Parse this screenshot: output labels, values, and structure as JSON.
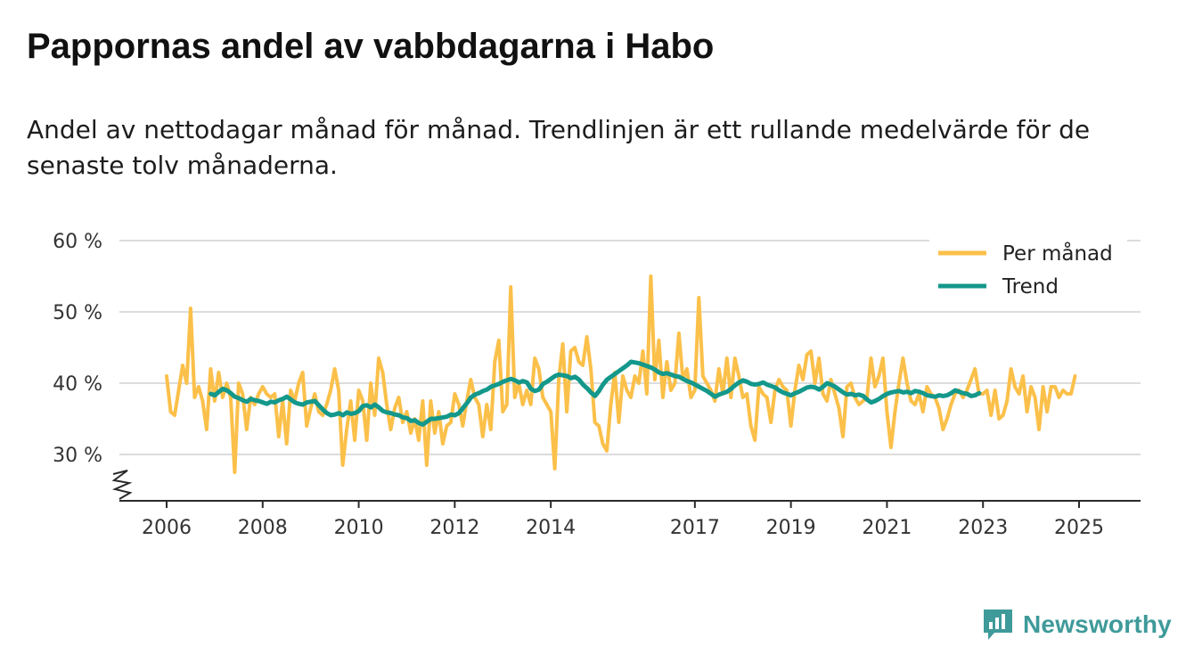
{
  "title": "Pappornas andel av vabbdagarna i Habo",
  "subtitle": "Andel av nettodagar månad för månad. Trendlinjen är ett rullande medelvärde för de senaste tolv månaderna.",
  "brand": {
    "name": "Newsworthy",
    "color": "#3f9a9a"
  },
  "chart_data": {
    "type": "line",
    "title": "Pappornas andel av vabbdagarna i Habo",
    "xlabel": "",
    "ylabel": "",
    "ylim": [
      24,
      60
    ],
    "y_ticks": [
      30,
      40,
      50,
      60
    ],
    "y_tick_labels": [
      "30 %",
      "40 %",
      "50 %",
      "60 %"
    ],
    "x_range": [
      2005.5,
      2025.7
    ],
    "x_ticks": [
      2006,
      2008,
      2010,
      2012,
      2014,
      2017,
      2019,
      2021,
      2023,
      2025
    ],
    "x_tick_labels": [
      "2006",
      "2008",
      "2010",
      "2012",
      "2014",
      "2017",
      "2019",
      "2021",
      "2023",
      "2025"
    ],
    "grid": true,
    "legend_position": "top-right",
    "series": [
      {
        "name": "Per månad",
        "color": "#fbc04a",
        "start": 2006.0,
        "step_months": 1,
        "values": [
          41,
          36,
          35.5,
          39,
          42.5,
          40,
          50.5,
          38,
          39.5,
          37.5,
          33.5,
          42,
          37.5,
          41.5,
          38,
          40,
          38,
          27.5,
          40,
          38.5,
          33.5,
          38,
          37,
          38.5,
          39.5,
          38.5,
          38,
          38.5,
          32.5,
          37.5,
          31.5,
          39,
          37.5,
          40,
          41.5,
          34,
          36.5,
          38.5,
          36,
          35.5,
          37,
          39,
          42,
          39,
          28.5,
          33.5,
          37.5,
          32,
          39,
          37.5,
          32,
          40,
          35.5,
          43.5,
          41.5,
          37,
          33.5,
          36.5,
          38,
          34.5,
          36,
          33,
          35,
          32,
          37.5,
          28.5,
          37.5,
          33,
          36,
          31.5,
          34,
          34.5,
          38.5,
          37,
          34,
          37.5,
          40.5,
          38,
          37,
          32.5,
          37,
          33.5,
          43,
          46,
          36,
          37,
          53.5,
          38,
          40,
          37,
          39,
          37,
          43.5,
          42,
          38,
          37,
          36,
          28,
          40.5,
          45.5,
          36,
          44.5,
          45,
          43,
          42.5,
          46.5,
          42,
          34.5,
          34,
          31.5,
          30.5,
          37,
          41.5,
          34.5,
          41,
          39,
          38,
          41,
          40,
          44.5,
          38.5,
          55,
          40.5,
          46,
          38,
          43,
          39,
          40,
          47,
          40.5,
          42,
          38,
          39,
          52,
          41,
          40,
          39,
          37.5,
          42,
          38.5,
          43.5,
          38,
          43.5,
          41,
          38,
          38.5,
          34,
          32,
          39.5,
          38.5,
          38,
          34.5,
          39,
          40.5,
          39.5,
          39,
          34,
          39,
          42.5,
          40.5,
          44,
          44.5,
          40,
          43.5,
          38.5,
          37.5,
          40.5,
          38.5,
          36.5,
          32.5,
          39.5,
          40,
          38,
          37,
          37.5,
          38,
          43.5,
          39.5,
          41,
          43.5,
          36,
          31,
          36,
          40,
          43.5,
          40,
          37.5,
          37,
          38.5,
          36,
          39.5,
          38.5,
          38,
          36.5,
          33.5,
          35,
          37,
          38.5,
          39,
          38,
          39,
          40.5,
          42,
          38.5,
          38.5,
          39,
          35.5,
          39,
          35,
          35.5,
          37.5,
          42,
          39.5,
          38.5,
          41,
          36,
          39.5,
          38,
          33.5,
          39.5,
          36,
          39.5,
          39.5,
          38,
          39,
          38.5,
          38.5,
          41
        ]
      },
      {
        "name": "Trend",
        "color": "#13988b",
        "start": 2006.92,
        "step_months": 1,
        "values": [
          38.5,
          38.3,
          38.8,
          39.2,
          39,
          38.6,
          38.1,
          37.9,
          37.6,
          37.4,
          37.8,
          37.6,
          37.5,
          37.3,
          37.1,
          37.4,
          37.3,
          37.6,
          37.8,
          38.1,
          37.7,
          37.3,
          37.1,
          37,
          37.3,
          37.4,
          37.5,
          36.9,
          36.3,
          35.8,
          35.5,
          35.6,
          35.8,
          35.5,
          35.9,
          35.7,
          35.8,
          36.1,
          36.8,
          36.9,
          36.6,
          37,
          36.6,
          36.1,
          35.9,
          35.8,
          35.6,
          35.5,
          35.2,
          35.1,
          34.7,
          34.8,
          34.4,
          34.2,
          34.6,
          35,
          35,
          35.1,
          35.2,
          35.3,
          35.6,
          35.5,
          35.8,
          36.5,
          37.2,
          38,
          38.4,
          38.6,
          38.9,
          39.1,
          39.5,
          39.7,
          39.9,
          40.2,
          40.4,
          40.6,
          40.4,
          40.1,
          40.3,
          40.1,
          39.2,
          38.9,
          39.1,
          39.9,
          40.2,
          40.6,
          41,
          41.2,
          41.1,
          41,
          40.7,
          40.9,
          40.5,
          39.8,
          39.3,
          38.7,
          38.2,
          38.9,
          39.8,
          40.5,
          40.9,
          41.3,
          41.7,
          42.1,
          42.5,
          43,
          42.9,
          42.8,
          42.6,
          42.4,
          42.2,
          41.9,
          41.5,
          41.3,
          41.4,
          41.2,
          41,
          40.9,
          40.6,
          40.3,
          40.1,
          39.8,
          39.5,
          39.2,
          38.9,
          38.5,
          38.1,
          38.4,
          38.6,
          38.8,
          39.2,
          39.7,
          40.1,
          40.4,
          40.2,
          39.9,
          39.8,
          39.9,
          40.1,
          39.8,
          39.6,
          39.4,
          39,
          38.7,
          38.5,
          38.3,
          38.6,
          38.8,
          39.1,
          39.4,
          39.5,
          39.4,
          39.1,
          39.5,
          40,
          39.8,
          39.5,
          39.1,
          38.7,
          38.4,
          38.5,
          38.3,
          38.4,
          38.2,
          37.7,
          37.3,
          37.5,
          37.8,
          38.2,
          38.5,
          38.7,
          38.8,
          38.9,
          38.7,
          38.8,
          38.6,
          38.9,
          38.8,
          38.6,
          38.3,
          38.2,
          38.1,
          38.3,
          38.2,
          38.3,
          38.6,
          39,
          38.8,
          38.6,
          38.5,
          38.2,
          38.3,
          38.6
        ]
      }
    ]
  }
}
